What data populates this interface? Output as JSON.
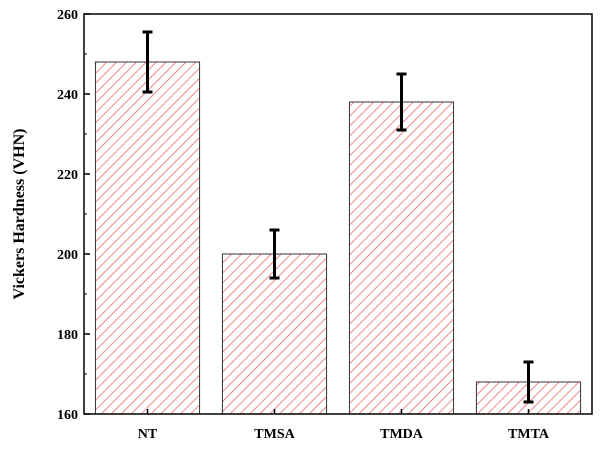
{
  "chart_data": {
    "type": "bar",
    "categories": [
      "NT",
      "TMSA",
      "TMDA",
      "TMTA"
    ],
    "values": [
      248,
      200,
      238,
      168
    ],
    "error_low": [
      240.5,
      194,
      231,
      163
    ],
    "error_high": [
      255.5,
      206,
      245,
      173
    ],
    "title": "",
    "xlabel": "",
    "ylabel": "Vickers Hardness (VHN)",
    "ylim": [
      160,
      260
    ],
    "yticks": [
      160,
      180,
      200,
      220,
      240,
      260
    ],
    "grid": false,
    "legend": "none"
  },
  "colors": {
    "bar_hatch": "#e8585a",
    "bar_edge": "#333333",
    "error_bar": "#000000",
    "axis": "#000000"
  }
}
